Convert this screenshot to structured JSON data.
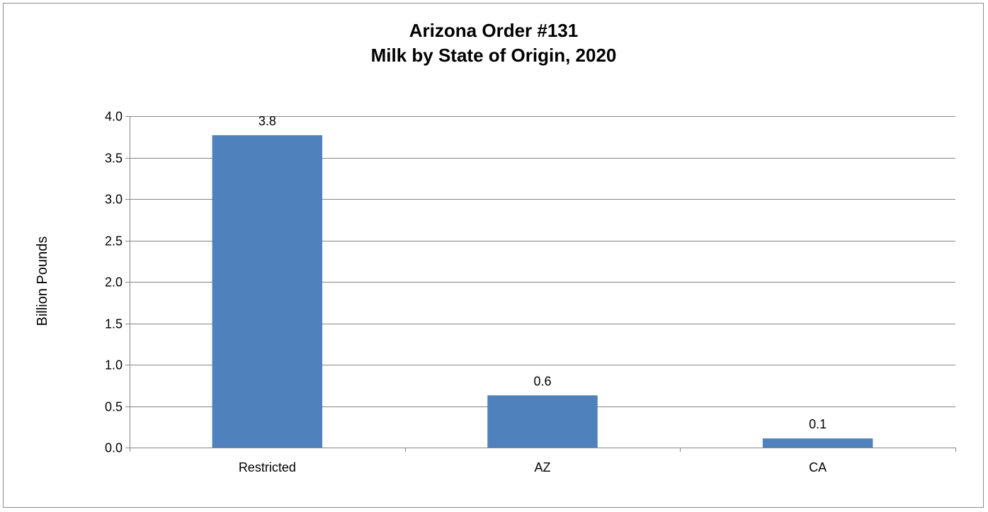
{
  "chart_data": {
    "type": "bar",
    "title_lines": [
      "Arizona Order #131",
      "Milk by State of Origin, 2020"
    ],
    "xlabel": "",
    "ylabel": "Billion Pounds",
    "categories": [
      "Restricted",
      "AZ",
      "CA"
    ],
    "values": [
      3.77,
      0.63,
      0.11
    ],
    "data_labels": [
      "3.8",
      "0.6",
      "0.1"
    ],
    "ylim": [
      0,
      4.0
    ],
    "yticks": [
      0.0,
      0.5,
      1.0,
      1.5,
      2.0,
      2.5,
      3.0,
      3.5,
      4.0
    ],
    "ytick_labels": [
      "0.0",
      "0.5",
      "1.0",
      "1.5",
      "2.0",
      "2.5",
      "3.0",
      "3.5",
      "4.0"
    ],
    "grid": "horizontal",
    "legend": "none",
    "bar_color": "#4F81BD",
    "grid_color": "#868686"
  }
}
